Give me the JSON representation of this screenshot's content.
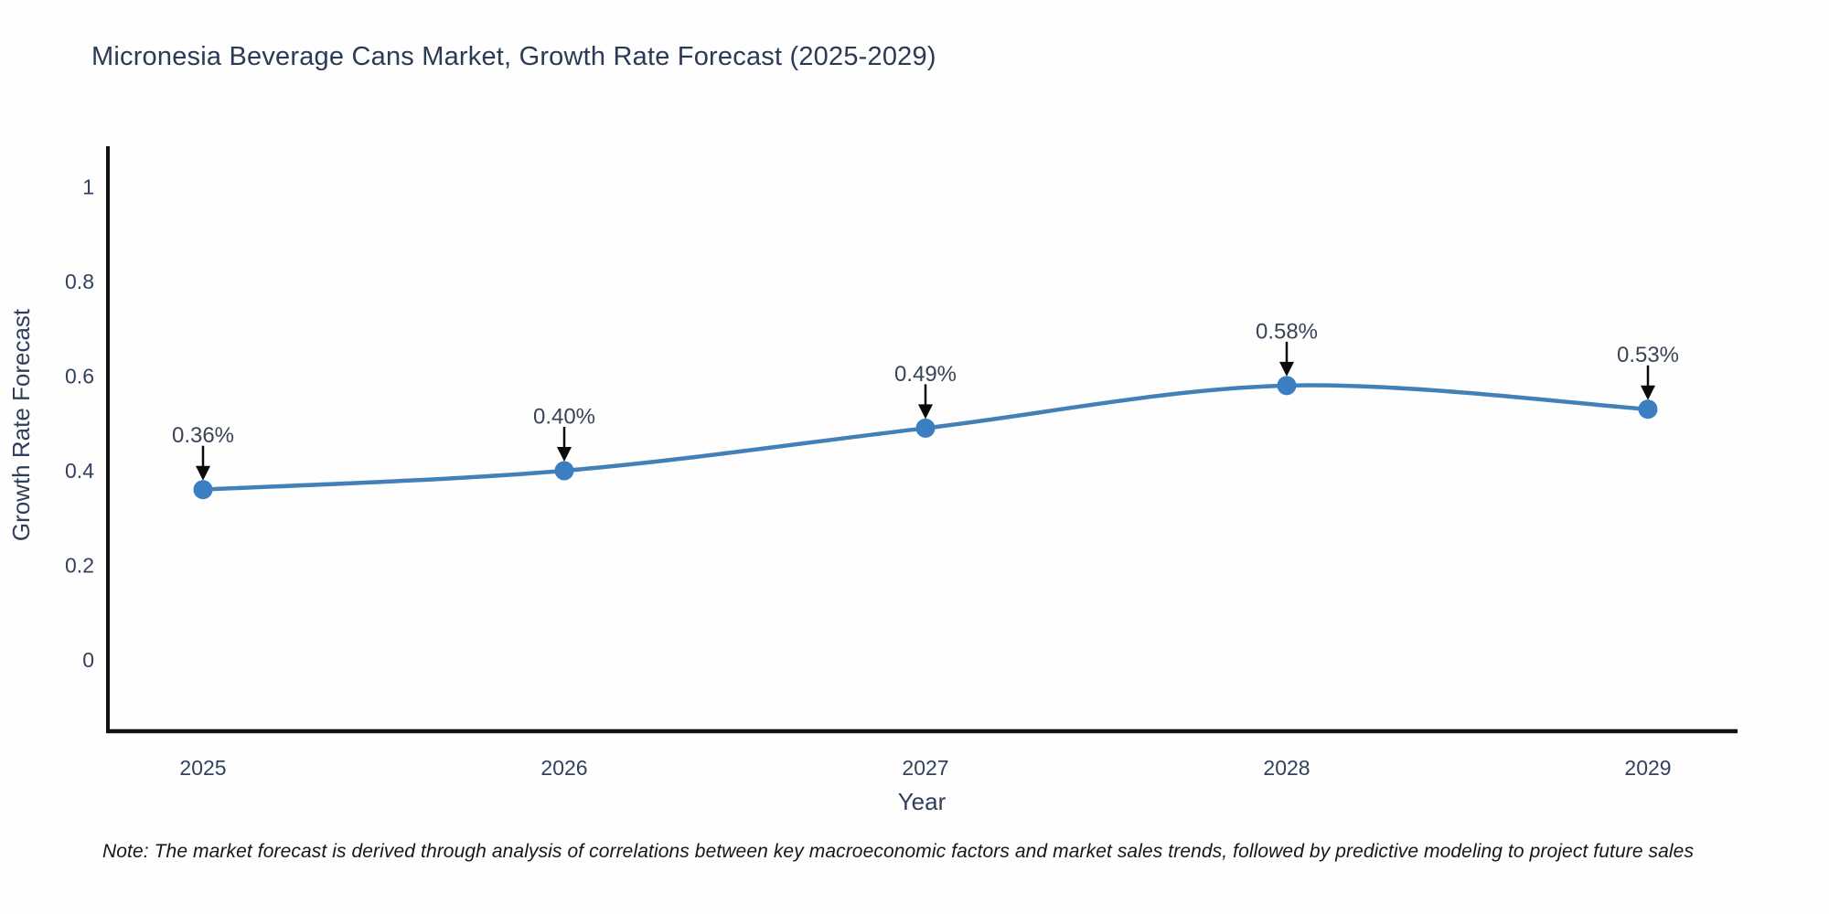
{
  "chart_data": {
    "type": "line",
    "title": "Micronesia Beverage Cans Market, Growth Rate Forecast (2025-2029)",
    "xlabel": "Year",
    "ylabel": "Growth Rate Forecast",
    "x": [
      2025,
      2026,
      2027,
      2028,
      2029
    ],
    "x_tick_labels": [
      "2025",
      "2026",
      "2027",
      "2028",
      "2029"
    ],
    "values": [
      0.36,
      0.4,
      0.49,
      0.58,
      0.53
    ],
    "point_labels": [
      "0.36%",
      "0.40%",
      "0.49%",
      "0.58%",
      "0.53%"
    ],
    "y_ticks": [
      0,
      0.2,
      0.4,
      0.6,
      0.8,
      1
    ],
    "y_tick_labels": [
      "0",
      "0.2",
      "0.4",
      "0.6",
      "0.8",
      "1"
    ],
    "ylim": [
      -0.15,
      1.14
    ],
    "grid": false,
    "legend": "none",
    "line_shape": "spline",
    "colors": {
      "line": "#4380b8",
      "marker": "#3c7ec2",
      "axis": "#111111",
      "title_text": "#2b3a55",
      "tick_text": "#33415c",
      "annotation_text": "#394457",
      "arrow": "#0a0a0a"
    }
  },
  "note": {
    "text": "Note: The market forecast is derived through analysis of correlations between key macroeconomic factors and market sales trends, followed by predictive modeling to project future sales"
  }
}
